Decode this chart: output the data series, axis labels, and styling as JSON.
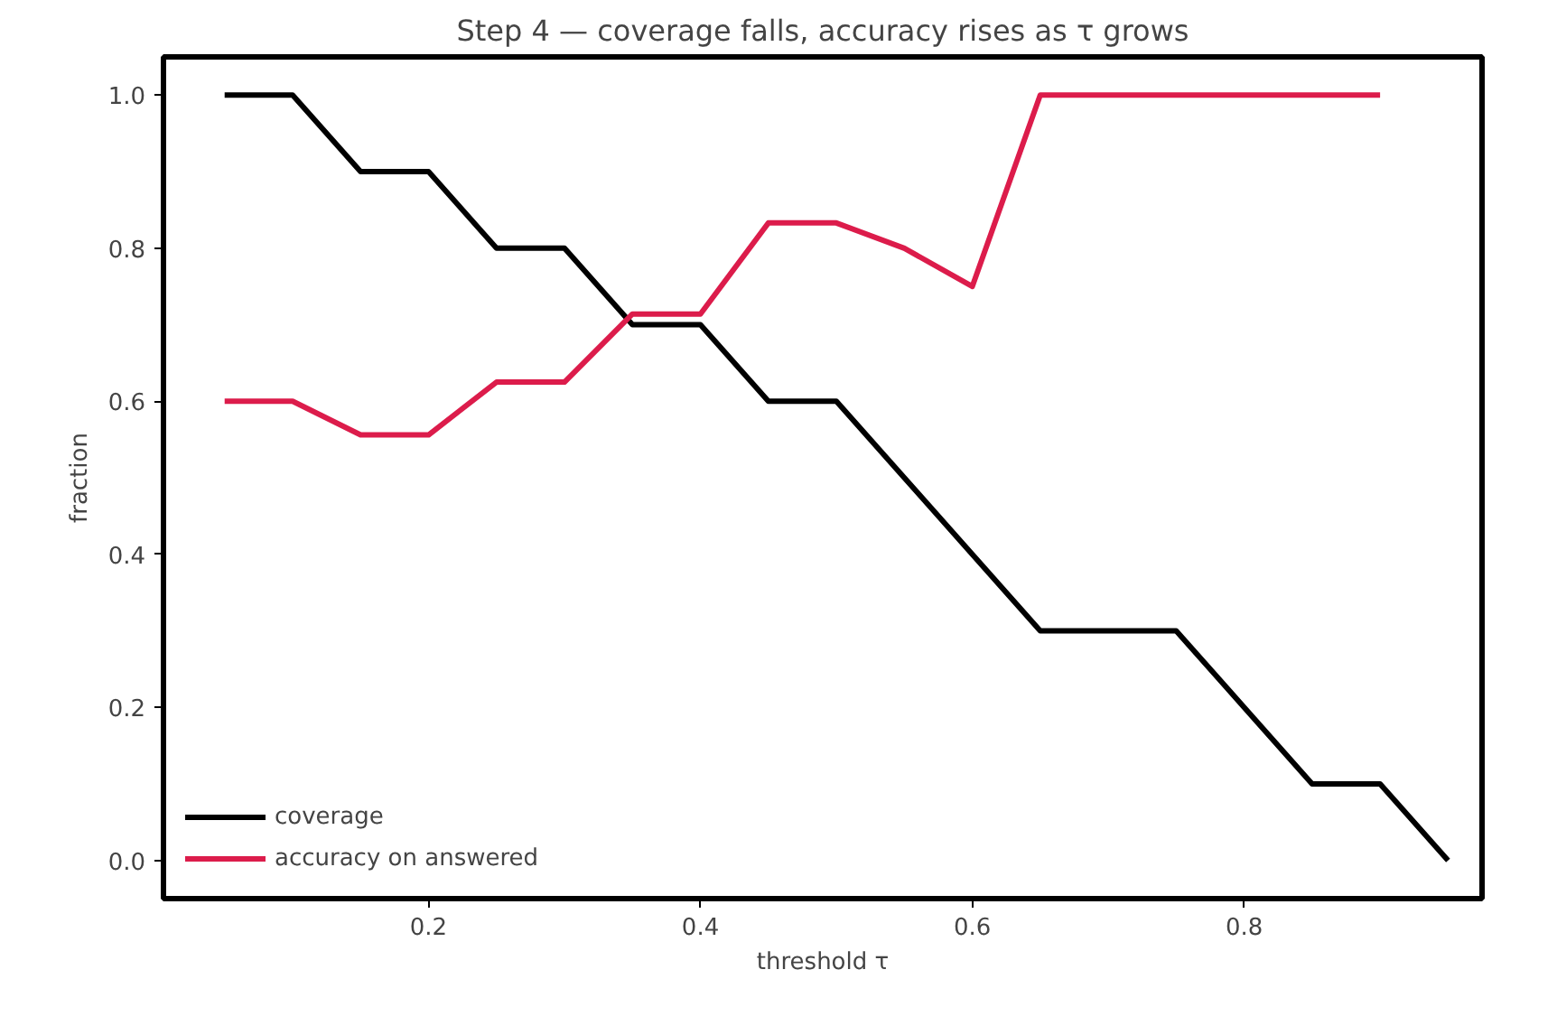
{
  "chart_data": {
    "type": "line",
    "title": "Step 4 — coverage falls, accuracy rises as τ grows",
    "xlabel": "threshold τ",
    "ylabel": "fraction",
    "x": [
      0.05,
      0.1,
      0.15,
      0.2,
      0.25,
      0.3,
      0.35,
      0.4,
      0.45,
      0.5,
      0.55,
      0.6,
      0.65,
      0.7,
      0.75,
      0.8,
      0.85,
      0.9,
      0.95
    ],
    "series": [
      {
        "name": "coverage",
        "color": "#000000",
        "values": [
          1.0,
          1.0,
          0.9,
          0.9,
          0.8,
          0.8,
          0.7,
          0.7,
          0.6,
          0.6,
          0.5,
          0.4,
          0.3,
          0.3,
          0.3,
          0.2,
          0.1,
          0.1,
          0.0
        ]
      },
      {
        "name": "accuracy on answered",
        "color": "#dc1c4b",
        "values": [
          0.6,
          0.6,
          0.556,
          0.556,
          0.625,
          0.625,
          0.714,
          0.714,
          0.833,
          0.833,
          0.8,
          0.75,
          1.0,
          1.0,
          1.0,
          1.0,
          1.0,
          1.0,
          null
        ]
      }
    ],
    "xlim": [
      0.005,
      0.975
    ],
    "ylim": [
      -0.05,
      1.05
    ],
    "xticks": [
      0.2,
      0.4,
      0.6,
      0.8
    ],
    "yticks": [
      {
        "value": 0,
        "label": "0.0"
      },
      0.2,
      0.4,
      0.6,
      0.8,
      {
        "value": 1,
        "label": "1.0"
      }
    ],
    "grid": false,
    "legend": "bottom left",
    "line_style": "solid",
    "marker": "none"
  }
}
